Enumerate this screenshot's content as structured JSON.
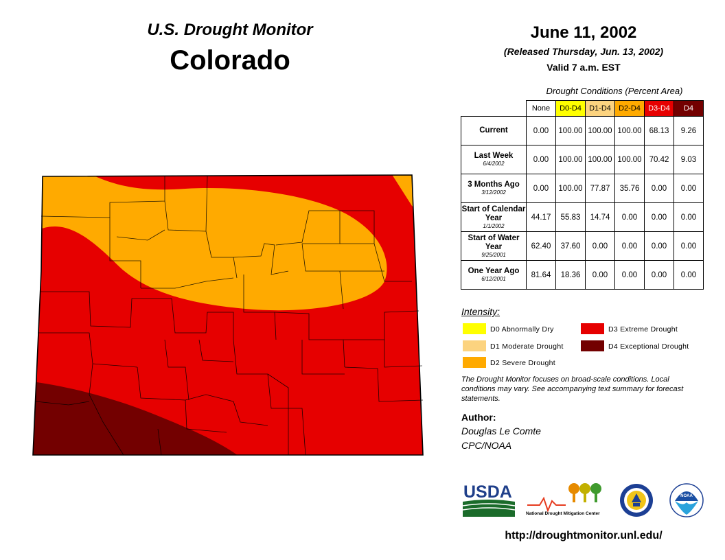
{
  "header": {
    "title": "U.S. Drought Monitor",
    "state": "Colorado",
    "date": "June 11, 2002",
    "released": "(Released Thursday, Jun. 13, 2002)",
    "valid": "Valid 7 a.m. EST"
  },
  "colors": {
    "none": "#ffffff",
    "d0": "#ffff00",
    "d1": "#fcd37f",
    "d2": "#ffaa00",
    "d3": "#e60000",
    "d4": "#730000"
  },
  "table": {
    "caption": "Drought Conditions (Percent Area)",
    "columns": [
      "None",
      "D0-D4",
      "D1-D4",
      "D2-D4",
      "D3-D4",
      "D4"
    ],
    "rows": [
      {
        "label": "Current",
        "sub": "",
        "values": [
          "0.00",
          "100.00",
          "100.00",
          "100.00",
          "68.13",
          "9.26"
        ]
      },
      {
        "label": "Last Week",
        "sub": "6/4/2002",
        "values": [
          "0.00",
          "100.00",
          "100.00",
          "100.00",
          "70.42",
          "9.03"
        ]
      },
      {
        "label": "3 Months Ago",
        "sub": "3/12/2002",
        "values": [
          "0.00",
          "100.00",
          "77.87",
          "35.76",
          "0.00",
          "0.00"
        ]
      },
      {
        "label": "Start of Calendar Year",
        "sub": "1/1/2002",
        "values": [
          "44.17",
          "55.83",
          "14.74",
          "0.00",
          "0.00",
          "0.00"
        ]
      },
      {
        "label": "Start of Water Year",
        "sub": "9/25/2001",
        "values": [
          "62.40",
          "37.60",
          "0.00",
          "0.00",
          "0.00",
          "0.00"
        ]
      },
      {
        "label": "One Year Ago",
        "sub": "6/12/2001",
        "values": [
          "81.64",
          "18.36",
          "0.00",
          "0.00",
          "0.00",
          "0.00"
        ]
      }
    ]
  },
  "legend": {
    "title": "Intensity:",
    "items": [
      {
        "label": "D0 Abnormally Dry",
        "color": "#ffff00"
      },
      {
        "label": "D1 Moderate Drought",
        "color": "#fcd37f"
      },
      {
        "label": "D2 Severe Drought",
        "color": "#ffaa00"
      },
      {
        "label": "D3 Extreme Drought",
        "color": "#e60000"
      },
      {
        "label": "D4 Exceptional Drought",
        "color": "#730000"
      }
    ]
  },
  "note": "The Drought Monitor focuses on broad-scale conditions. Local conditions may vary. See accompanying text summary for forecast statements.",
  "author": {
    "heading": "Author:",
    "name": "Douglas Le Comte",
    "org": "CPC/NOAA"
  },
  "logos": {
    "usda": "USDA",
    "ndmc": "National Drought Mitigation Center",
    "noaa": "NOAA"
  },
  "url": "http://droughtmonitor.unl.edu/"
}
